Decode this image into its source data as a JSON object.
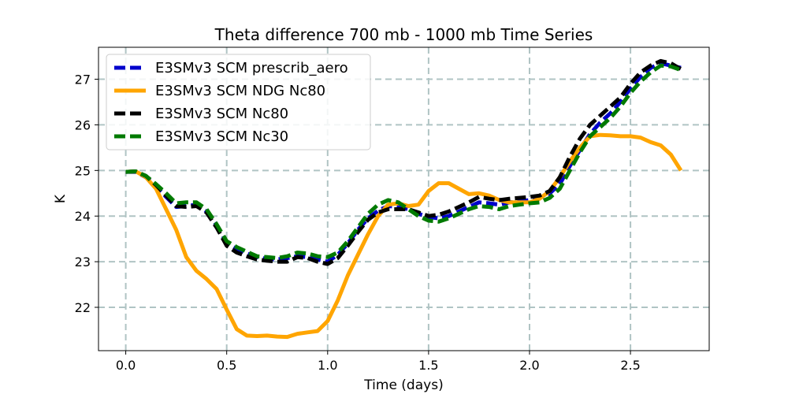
{
  "chart_data": {
    "type": "line",
    "title": "Theta difference 700 mb - 1000 mb Time Series",
    "xlabel": "Time (days)",
    "ylabel": "K",
    "xlim": [
      -0.135,
      2.89
    ],
    "ylim": [
      21.05,
      27.7
    ],
    "xticks": [
      0.0,
      0.5,
      1.0,
      1.5,
      2.0,
      2.5
    ],
    "xtick_labels": [
      "0.0",
      "0.5",
      "1.0",
      "1.5",
      "2.0",
      "2.5"
    ],
    "yticks": [
      22,
      23,
      24,
      25,
      26,
      27
    ],
    "ytick_labels": [
      "22",
      "23",
      "24",
      "25",
      "26",
      "27"
    ],
    "grid": true,
    "legend_position": "top-left",
    "x": [
      0.0,
      0.05,
      0.1,
      0.15,
      0.2,
      0.25,
      0.3,
      0.35,
      0.4,
      0.45,
      0.5,
      0.55,
      0.6,
      0.65,
      0.7,
      0.75,
      0.8,
      0.85,
      0.9,
      0.95,
      1.0,
      1.05,
      1.1,
      1.15,
      1.2,
      1.25,
      1.3,
      1.35,
      1.4,
      1.45,
      1.5,
      1.55,
      1.6,
      1.65,
      1.7,
      1.75,
      1.8,
      1.85,
      1.9,
      1.95,
      2.0,
      2.05,
      2.1,
      2.15,
      2.2,
      2.25,
      2.3,
      2.35,
      2.4,
      2.45,
      2.5,
      2.55,
      2.6,
      2.65,
      2.7,
      2.75
    ],
    "series": [
      {
        "name": "E3SMv3 SCM prescrib_aero",
        "color": "#0000cc",
        "dash": "dashed",
        "values": [
          24.97,
          24.97,
          24.85,
          24.65,
          24.42,
          24.2,
          24.22,
          24.25,
          24.1,
          23.8,
          23.42,
          23.28,
          23.18,
          23.1,
          23.06,
          23.05,
          23.08,
          23.12,
          23.1,
          23.05,
          23.0,
          23.15,
          23.4,
          23.7,
          23.95,
          24.12,
          24.22,
          24.2,
          24.15,
          24.05,
          23.98,
          23.95,
          24.0,
          24.1,
          24.2,
          24.3,
          24.28,
          24.25,
          24.3,
          24.32,
          24.35,
          24.4,
          24.5,
          24.7,
          25.1,
          25.45,
          25.8,
          26.05,
          26.25,
          26.5,
          26.8,
          27.05,
          27.25,
          27.35,
          27.3,
          27.25
        ]
      },
      {
        "name": "E3SMv3 SCM NDG Nc80",
        "color": "#ffa500",
        "dash": "solid",
        "values": [
          24.97,
          24.98,
          24.85,
          24.6,
          24.15,
          23.7,
          23.1,
          22.8,
          22.62,
          22.4,
          21.95,
          21.52,
          21.38,
          21.37,
          21.38,
          21.36,
          21.35,
          21.42,
          21.45,
          21.48,
          21.7,
          22.15,
          22.7,
          23.15,
          23.6,
          24.0,
          24.25,
          24.28,
          24.22,
          24.25,
          24.55,
          24.72,
          24.72,
          24.6,
          24.48,
          24.5,
          24.45,
          24.35,
          24.3,
          24.3,
          24.3,
          24.38,
          24.55,
          24.85,
          25.2,
          25.5,
          25.75,
          25.78,
          25.77,
          25.75,
          25.75,
          25.72,
          25.62,
          25.55,
          25.35,
          25.0
        ]
      },
      {
        "name": "E3SMv3 SCM Nc80",
        "color": "#000000",
        "dash": "dashed",
        "values": [
          24.97,
          24.98,
          24.88,
          24.68,
          24.45,
          24.22,
          24.2,
          24.22,
          24.08,
          23.75,
          23.35,
          23.2,
          23.12,
          23.05,
          23.02,
          23.0,
          23.0,
          23.1,
          23.08,
          23.0,
          22.95,
          23.08,
          23.35,
          23.65,
          23.92,
          24.08,
          24.15,
          24.15,
          24.15,
          24.08,
          24.0,
          24.03,
          24.1,
          24.2,
          24.3,
          24.42,
          24.38,
          24.35,
          24.38,
          24.4,
          24.42,
          24.45,
          24.55,
          24.85,
          25.3,
          25.7,
          26.0,
          26.2,
          26.4,
          26.6,
          26.9,
          27.15,
          27.3,
          27.4,
          27.35,
          27.22
        ]
      },
      {
        "name": "E3SMv3 SCM Nc30",
        "color": "#007a00",
        "dash": "dashed",
        "values": [
          24.97,
          24.98,
          24.88,
          24.7,
          24.5,
          24.28,
          24.3,
          24.3,
          24.15,
          23.82,
          23.45,
          23.32,
          23.22,
          23.12,
          23.1,
          23.08,
          23.12,
          23.2,
          23.18,
          23.12,
          23.1,
          23.2,
          23.45,
          23.75,
          24.05,
          24.25,
          24.35,
          24.3,
          24.15,
          24.0,
          23.9,
          23.88,
          23.95,
          24.05,
          24.15,
          24.22,
          24.2,
          24.15,
          24.22,
          24.25,
          24.28,
          24.3,
          24.4,
          24.6,
          25.0,
          25.4,
          25.75,
          25.95,
          26.15,
          26.4,
          26.7,
          26.95,
          27.15,
          27.3,
          27.28,
          27.2
        ]
      }
    ]
  }
}
